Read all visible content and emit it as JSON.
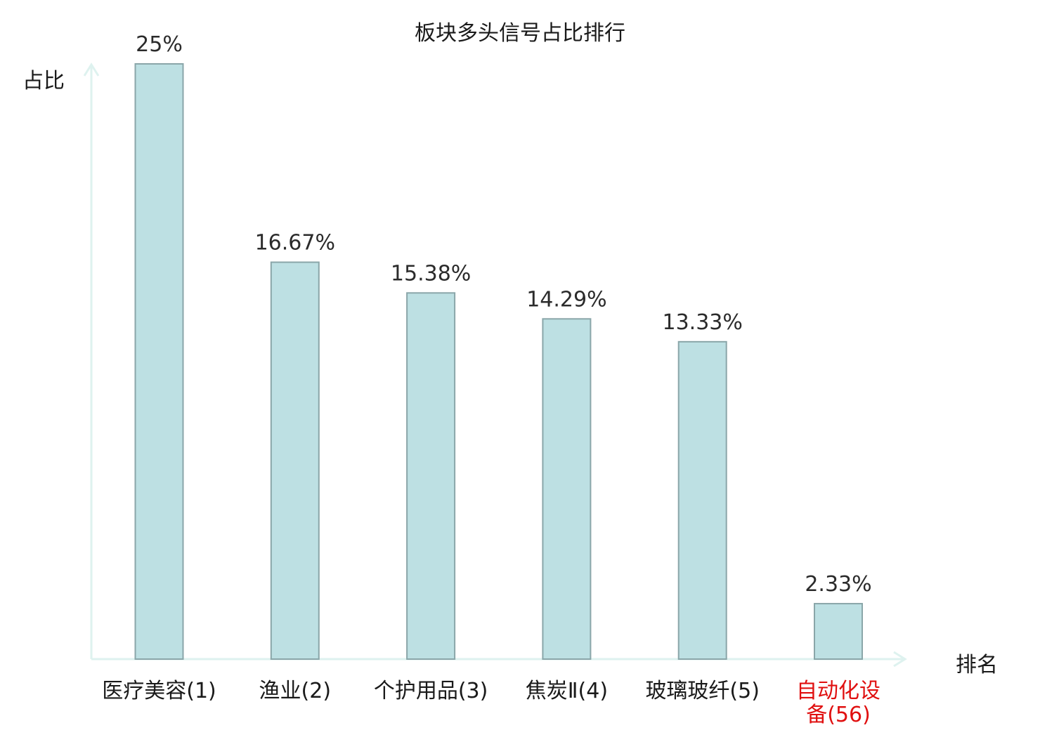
{
  "chart_data": {
    "type": "bar",
    "title": "板块多头信号占比排行",
    "ylabel": "占比",
    "xlabel": "排名",
    "categories": [
      "医疗美容(1)",
      "渔业(2)",
      "个护用品(3)",
      "焦炭Ⅱ(4)",
      "玻璃玻纤(5)",
      "自动化设备(56)"
    ],
    "category_lines": [
      [
        "医疗美容(1)"
      ],
      [
        "渔业(2)"
      ],
      [
        "个护用品(3)"
      ],
      [
        "焦炭Ⅱ(4)"
      ],
      [
        "玻璃玻纤(5)"
      ],
      [
        "自动化设",
        "备(56)"
      ]
    ],
    "values": [
      25,
      16.67,
      15.38,
      14.29,
      13.33,
      2.33
    ],
    "value_labels": [
      "25%",
      "16.67%",
      "15.38%",
      "14.29%",
      "13.33%",
      "2.33%"
    ],
    "highlight_index": 5,
    "ylim": [
      0,
      25
    ],
    "grid": false,
    "colors": {
      "bar_fill": "#bde0e3",
      "bar_stroke": "#8aa6a9",
      "axis": "#def2ef",
      "label": "#1a1a1a",
      "highlight_label": "#e01010",
      "value_label": "#2b2b2b"
    }
  }
}
